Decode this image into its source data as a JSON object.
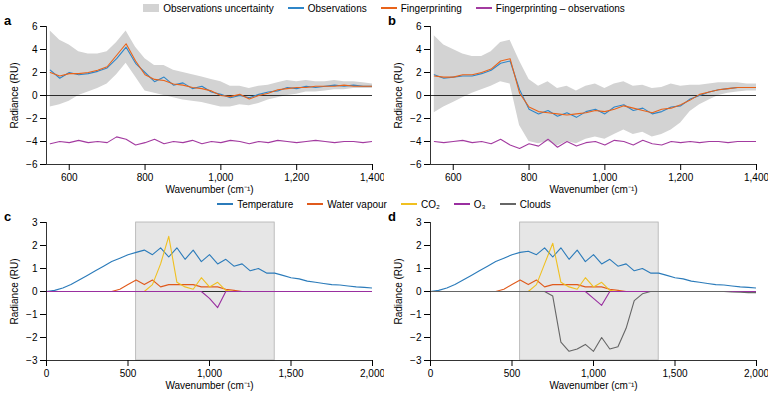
{
  "chart_data": [
    {
      "type": "line",
      "title": "a",
      "legend": "top",
      "x_label": "Wavenumber (cm⁻¹)",
      "y_label": "Radiance (RU)",
      "xlim": [
        540,
        1400
      ],
      "ylim": [
        -6,
        6
      ],
      "xticks": [
        600,
        800,
        {
          "value": 1000,
          "label": "1,000"
        },
        {
          "value": 1200,
          "label": "1,200"
        },
        {
          "value": 1400,
          "label": "1,400"
        }
      ],
      "yticks": [
        {
          "value": -6,
          "label": "−6"
        },
        {
          "value": -4,
          "label": "−4"
        },
        {
          "value": -2,
          "label": "−2"
        },
        0,
        2,
        4,
        6
      ],
      "reference_line": 0,
      "x": [
        550,
        575,
        600,
        625,
        650,
        675,
        700,
        725,
        750,
        775,
        800,
        825,
        850,
        875,
        900,
        925,
        950,
        975,
        1000,
        1025,
        1050,
        1075,
        1100,
        1125,
        1150,
        1175,
        1200,
        1225,
        1250,
        1275,
        1300,
        1325,
        1350,
        1375,
        1400
      ],
      "series": [
        {
          "name": "Observations uncertainty",
          "type": "area",
          "color": "#d3d3d3",
          "lower": [
            -1.0,
            -0.8,
            -0.5,
            0.0,
            0.3,
            0.6,
            1.0,
            1.8,
            2.8,
            1.6,
            0.4,
            0.2,
            0.0,
            -0.2,
            -0.4,
            -0.5,
            -0.6,
            -0.8,
            -1.0,
            -1.0,
            -0.8,
            -0.9,
            -0.7,
            -0.4,
            -0.2,
            0.0,
            0.1,
            0.3,
            0.3,
            0.4,
            0.5,
            0.5,
            0.6,
            0.6,
            0.6
          ],
          "upper": [
            5.6,
            4.8,
            4.4,
            3.8,
            3.6,
            3.6,
            3.8,
            4.6,
            5.6,
            4.2,
            3.2,
            2.6,
            2.6,
            2.2,
            2.0,
            1.8,
            1.6,
            1.4,
            1.2,
            0.8,
            0.8,
            0.6,
            0.8,
            0.9,
            1.1,
            1.3,
            1.2,
            1.3,
            1.2,
            1.2,
            1.3,
            1.2,
            1.2,
            1.1,
            1.0
          ]
        },
        {
          "name": "Observations",
          "color": "#2f86c8",
          "values": [
            2.2,
            1.5,
            2.0,
            1.8,
            1.9,
            2.1,
            2.4,
            3.2,
            4.2,
            2.8,
            2.0,
            1.2,
            1.6,
            0.9,
            1.1,
            0.6,
            0.8,
            0.3,
            0.1,
            -0.2,
            0.0,
            -0.2,
            0.1,
            0.3,
            0.4,
            0.7,
            0.6,
            0.8,
            0.7,
            0.8,
            0.9,
            0.8,
            0.9,
            0.8,
            0.8
          ]
        },
        {
          "name": "Fingerprinting",
          "color": "#e8631a",
          "values": [
            2.0,
            1.7,
            1.9,
            1.9,
            2.0,
            2.2,
            2.5,
            3.5,
            4.5,
            3.0,
            1.8,
            1.4,
            1.3,
            1.0,
            0.9,
            0.7,
            0.6,
            0.4,
            0.0,
            -0.1,
            0.1,
            -0.3,
            0.0,
            0.2,
            0.5,
            0.6,
            0.7,
            0.7,
            0.8,
            0.8,
            0.8,
            0.9,
            0.8,
            0.8,
            0.8
          ]
        },
        {
          "name": "Fingerprinting – observations",
          "color": "#a33ba0",
          "values": [
            -4.2,
            -4.0,
            -4.1,
            -3.9,
            -4.1,
            -4.0,
            -4.1,
            -3.6,
            -3.8,
            -4.3,
            -4.1,
            -3.8,
            -4.2,
            -4.0,
            -4.1,
            -3.9,
            -4.2,
            -4.0,
            -4.1,
            -3.9,
            -4.0,
            -4.2,
            -4.0,
            -4.1,
            -3.9,
            -4.0,
            -4.1,
            -4.0,
            -3.9,
            -4.0,
            -4.1,
            -4.0,
            -4.0,
            -4.1,
            -4.0
          ]
        }
      ]
    },
    {
      "type": "line",
      "title": "b",
      "legend": "top",
      "x_label": "Wavenumber (cm⁻¹)",
      "y_label": "Radiance (RU)",
      "xlim": [
        540,
        1400
      ],
      "ylim": [
        -6,
        6
      ],
      "xticks": [
        600,
        800,
        {
          "value": 1000,
          "label": "1,000"
        },
        {
          "value": 1200,
          "label": "1,200"
        },
        {
          "value": 1400,
          "label": "1,400"
        }
      ],
      "yticks": [
        {
          "value": -6,
          "label": "−6"
        },
        {
          "value": -4,
          "label": "−4"
        },
        {
          "value": -2,
          "label": "−2"
        },
        0,
        2,
        4,
        6
      ],
      "reference_line": 0,
      "x": [
        550,
        575,
        600,
        625,
        650,
        675,
        700,
        725,
        750,
        775,
        800,
        825,
        850,
        875,
        900,
        925,
        950,
        975,
        1000,
        1025,
        1050,
        1075,
        1100,
        1125,
        1150,
        1175,
        1200,
        1225,
        1250,
        1275,
        1300,
        1325,
        1350,
        1375,
        1400
      ],
      "series": [
        {
          "name": "Observations uncertainty",
          "type": "area",
          "color": "#d3d3d3",
          "lower": [
            -1.5,
            -1.0,
            -0.6,
            -0.2,
            0.2,
            0.5,
            0.8,
            1.2,
            1.0,
            -2.6,
            -4.0,
            -4.2,
            -4.0,
            -4.4,
            -4.0,
            -4.2,
            -3.8,
            -3.6,
            -3.8,
            -3.4,
            -3.0,
            -3.4,
            -3.2,
            -3.6,
            -3.4,
            -3.0,
            -2.4,
            -1.4,
            -0.8,
            -0.4,
            0.0,
            0.2,
            0.3,
            0.4,
            0.4
          ],
          "upper": [
            5.2,
            4.4,
            4.0,
            3.6,
            3.4,
            3.4,
            3.8,
            4.6,
            4.8,
            3.0,
            1.4,
            0.8,
            1.2,
            0.6,
            0.8,
            0.4,
            0.8,
            1.0,
            0.6,
            1.0,
            1.2,
            0.8,
            0.9,
            0.6,
            0.7,
            1.0,
            0.8,
            0.9,
            0.9,
            1.0,
            1.1,
            1.1,
            1.1,
            1.0,
            1.0
          ]
        },
        {
          "name": "Observations",
          "color": "#2f86c8",
          "values": [
            1.8,
            1.5,
            1.6,
            1.7,
            1.7,
            1.9,
            2.2,
            2.8,
            3.0,
            0.5,
            -1.2,
            -1.6,
            -1.3,
            -1.8,
            -1.5,
            -1.9,
            -1.4,
            -1.2,
            -1.6,
            -1.0,
            -0.8,
            -1.3,
            -1.1,
            -1.6,
            -1.4,
            -1.0,
            -0.9,
            -0.3,
            0.0,
            0.3,
            0.5,
            0.6,
            0.7,
            0.7,
            0.7
          ]
        },
        {
          "name": "Fingerprinting",
          "color": "#e8631a",
          "values": [
            1.7,
            1.6,
            1.6,
            1.8,
            1.8,
            2.0,
            2.3,
            3.0,
            3.2,
            0.2,
            -1.0,
            -1.4,
            -1.5,
            -1.6,
            -1.7,
            -1.6,
            -1.5,
            -1.3,
            -1.4,
            -1.2,
            -0.9,
            -1.1,
            -1.3,
            -1.5,
            -1.2,
            -1.1,
            -0.8,
            -0.4,
            0.1,
            0.3,
            0.5,
            0.6,
            0.7,
            0.7,
            0.7
          ]
        },
        {
          "name": "Fingerprinting – observations",
          "color": "#a33ba0",
          "values": [
            -4.0,
            -4.1,
            -4.0,
            -3.9,
            -4.1,
            -4.0,
            -4.2,
            -3.8,
            -4.3,
            -4.6,
            -4.2,
            -4.4,
            -3.8,
            -4.5,
            -4.0,
            -4.4,
            -4.1,
            -4.0,
            -4.3,
            -3.9,
            -4.0,
            -4.3,
            -3.9,
            -4.2,
            -4.3,
            -4.0,
            -4.1,
            -4.0,
            -4.1,
            -4.0,
            -4.0,
            -4.1,
            -4.0,
            -4.0,
            -4.0
          ]
        }
      ]
    },
    {
      "type": "line",
      "title": "c",
      "legend": "top",
      "x_label": "Wavenumber (cm⁻¹)",
      "y_label": "Radiance (RU)",
      "xlim": [
        0,
        2000
      ],
      "ylim": [
        -3,
        3
      ],
      "xticks": [
        0,
        500,
        {
          "value": 1000,
          "label": "1,000"
        },
        {
          "value": 1500,
          "label": "1,500"
        },
        {
          "value": 2000,
          "label": "2,000"
        }
      ],
      "yticks": [
        {
          "value": -3,
          "label": "−3"
        },
        {
          "value": -2,
          "label": "−2"
        },
        {
          "value": -1,
          "label": "−1"
        },
        0,
        1,
        2,
        3
      ],
      "reference_line": 0,
      "shaded_range": [
        550,
        1400
      ],
      "x": [
        0,
        50,
        100,
        150,
        200,
        250,
        300,
        350,
        400,
        450,
        500,
        550,
        600,
        650,
        700,
        750,
        800,
        850,
        900,
        950,
        1000,
        1050,
        1100,
        1150,
        1200,
        1250,
        1300,
        1350,
        1400,
        1450,
        1500,
        1550,
        1600,
        1650,
        1700,
        1750,
        1800,
        1850,
        1900,
        1950,
        2000
      ],
      "series": [
        {
          "name": "Temperature",
          "color": "#2b7bba",
          "values": [
            0.0,
            0.05,
            0.15,
            0.3,
            0.5,
            0.7,
            0.9,
            1.1,
            1.3,
            1.45,
            1.6,
            1.7,
            1.8,
            1.6,
            1.9,
            1.5,
            1.9,
            1.4,
            1.8,
            1.3,
            1.6,
            1.2,
            1.4,
            1.1,
            1.2,
            0.9,
            1.0,
            0.8,
            0.8,
            0.7,
            0.6,
            0.55,
            0.45,
            0.4,
            0.35,
            0.3,
            0.28,
            0.24,
            0.2,
            0.18,
            0.15
          ]
        },
        {
          "name": "Water vapour",
          "color": "#e05a1c",
          "values": [
            0,
            0,
            0,
            0,
            0,
            0,
            0,
            0,
            0,
            0.1,
            0.3,
            0.5,
            0.3,
            0.5,
            0.2,
            0.3,
            0.3,
            0.3,
            0.3,
            0.2,
            0.2,
            0.2,
            0.1,
            0.05,
            0,
            0,
            0,
            0,
            0,
            0,
            0,
            0,
            0,
            0,
            0,
            0,
            0,
            0,
            0,
            0,
            0
          ]
        },
        {
          "name": "CO₂",
          "color": "#f0c020",
          "values": [
            0,
            0,
            0,
            0,
            0,
            0,
            0,
            0,
            0,
            0,
            0,
            0,
            0,
            0.3,
            1.2,
            2.4,
            0.4,
            0.2,
            0.1,
            0.6,
            0.2,
            0.4,
            0.05,
            0,
            0,
            0,
            0,
            0,
            0,
            0,
            0,
            0,
            0,
            0,
            0,
            0,
            0,
            0,
            0,
            0,
            0
          ]
        },
        {
          "name": "O₃",
          "color": "#9a2fa0",
          "values": [
            0,
            0,
            0,
            0,
            0,
            0,
            0,
            0,
            0,
            0,
            0,
            0,
            0,
            0,
            0,
            0,
            0,
            0,
            0,
            0,
            -0.3,
            -0.7,
            0,
            0,
            0,
            0,
            0,
            0,
            0,
            0,
            0,
            0,
            0,
            0,
            0,
            0,
            0,
            0,
            0,
            0,
            0
          ]
        }
      ]
    },
    {
      "type": "line",
      "title": "d",
      "legend": "top",
      "x_label": "Wavenumber (cm⁻¹)",
      "y_label": "Radiance (RU)",
      "xlim": [
        0,
        2000
      ],
      "ylim": [
        -3,
        3
      ],
      "xticks": [
        0,
        500,
        {
          "value": 1000,
          "label": "1,000"
        },
        {
          "value": 1500,
          "label": "1,500"
        },
        {
          "value": 2000,
          "label": "2,000"
        }
      ],
      "yticks": [
        {
          "value": -3,
          "label": "−3"
        },
        {
          "value": -2,
          "label": "−2"
        },
        {
          "value": -1,
          "label": "−1"
        },
        0,
        1,
        2,
        3
      ],
      "reference_line": 0,
      "shaded_range": [
        550,
        1400
      ],
      "x": [
        0,
        50,
        100,
        150,
        200,
        250,
        300,
        350,
        400,
        450,
        500,
        550,
        600,
        650,
        700,
        750,
        800,
        850,
        900,
        950,
        1000,
        1050,
        1100,
        1150,
        1200,
        1250,
        1300,
        1350,
        1400,
        1450,
        1500,
        1550,
        1600,
        1650,
        1700,
        1750,
        1800,
        1850,
        1900,
        1950,
        2000
      ],
      "series": [
        {
          "name": "Temperature",
          "color": "#2b7bba",
          "values": [
            0.0,
            0.05,
            0.15,
            0.3,
            0.5,
            0.7,
            0.9,
            1.1,
            1.3,
            1.45,
            1.6,
            1.7,
            1.75,
            1.6,
            1.9,
            1.5,
            1.9,
            1.4,
            1.8,
            1.3,
            1.6,
            1.2,
            1.4,
            1.1,
            1.2,
            0.9,
            1.0,
            0.8,
            0.8,
            0.7,
            0.6,
            0.55,
            0.45,
            0.4,
            0.35,
            0.3,
            0.28,
            0.24,
            0.2,
            0.18,
            0.15
          ]
        },
        {
          "name": "Water vapour",
          "color": "#e05a1c",
          "values": [
            0,
            0,
            0,
            0,
            0,
            0,
            0,
            0,
            0,
            0.1,
            0.3,
            0.5,
            0.3,
            0.5,
            0.2,
            0.3,
            0.3,
            0.3,
            0.3,
            0.2,
            0.2,
            0.2,
            0.1,
            0.05,
            0,
            0,
            0,
            0,
            0,
            0,
            0,
            0,
            0,
            0,
            0,
            0,
            0,
            0,
            0,
            0,
            0
          ]
        },
        {
          "name": "CO₂",
          "color": "#f0c020",
          "values": [
            0,
            0,
            0,
            0,
            0,
            0,
            0,
            0,
            0,
            0,
            0,
            0,
            0,
            0.3,
            1.2,
            2.1,
            0.4,
            0.2,
            0.1,
            0.6,
            0.2,
            0.4,
            0.05,
            0,
            0,
            0,
            0,
            0,
            0,
            0,
            0,
            0,
            0,
            0,
            0,
            0,
            0,
            0,
            0,
            0,
            0
          ]
        },
        {
          "name": "O₃",
          "color": "#9a2fa0",
          "values": [
            0,
            0,
            0,
            0,
            0,
            0,
            0,
            0,
            0,
            0,
            0,
            0,
            0,
            0,
            0,
            0,
            0,
            0,
            0,
            0,
            -0.3,
            -0.6,
            0,
            0,
            0,
            0,
            0,
            0,
            0,
            0,
            0,
            0,
            0,
            0,
            0,
            0,
            0,
            0,
            0,
            0,
            0
          ]
        },
        {
          "name": "Clouds",
          "color": "#666666",
          "values": [
            0,
            0,
            0,
            0,
            0,
            0,
            0,
            0,
            0,
            0,
            0,
            0,
            0,
            0,
            0,
            -0.2,
            -2.2,
            -2.6,
            -2.5,
            -2.3,
            -2.6,
            -2.0,
            -2.5,
            -2.4,
            -1.6,
            -0.4,
            -0.1,
            0,
            0,
            0,
            0,
            0,
            0,
            0,
            0,
            0,
            0,
            -0.02,
            -0.03,
            -0.05,
            -0.05
          ]
        }
      ]
    }
  ]
}
